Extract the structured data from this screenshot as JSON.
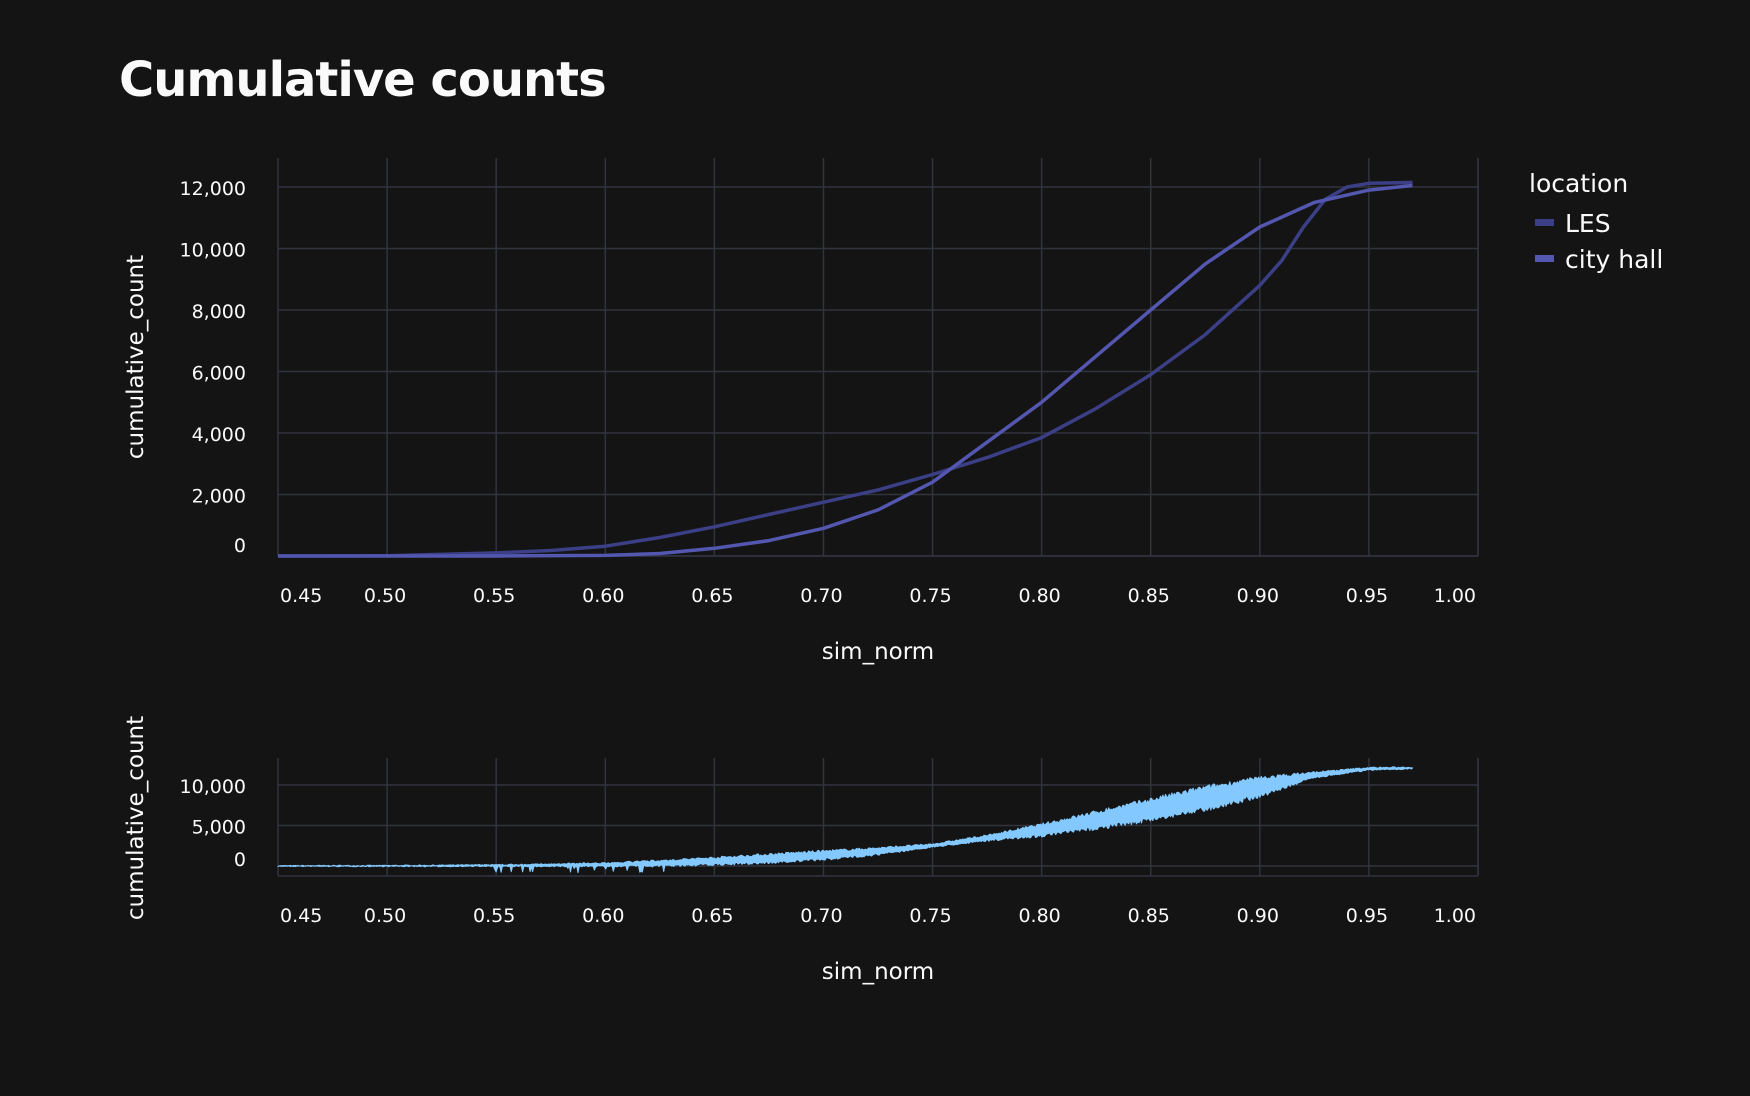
{
  "page": {
    "title": "Cumulative counts"
  },
  "colors": {
    "background": "#141414",
    "grid": "#31333f",
    "les": "#3b3f86",
    "city_hall": "#5357b0",
    "noise": "#83c9ff",
    "text": "#fafafa"
  },
  "chart_data": [
    {
      "type": "line",
      "title": "Cumulative counts",
      "xlabel": "sim_norm",
      "ylabel": "cumulative_count",
      "xlim": [
        0.45,
        1.0
      ],
      "ylim": [
        0,
        12000
      ],
      "x_ticks": [
        "0.45",
        "0.50",
        "0.55",
        "0.60",
        "0.65",
        "0.70",
        "0.75",
        "0.80",
        "0.85",
        "0.90",
        "0.95",
        "1.00"
      ],
      "y_ticks": [
        "0",
        "2,000",
        "4,000",
        "6,000",
        "8,000",
        "10,000",
        "12,000"
      ],
      "grid": true,
      "legend": {
        "title": "location",
        "placement": "right"
      },
      "series": [
        {
          "name": "LES",
          "color": "#3b3f86",
          "points": [
            [
              0.45,
              0
            ],
            [
              0.5,
              10
            ],
            [
              0.55,
              100
            ],
            [
              0.575,
              180
            ],
            [
              0.6,
              320
            ],
            [
              0.625,
              600
            ],
            [
              0.65,
              950
            ],
            [
              0.675,
              1350
            ],
            [
              0.7,
              1750
            ],
            [
              0.725,
              2150
            ],
            [
              0.75,
              2650
            ],
            [
              0.775,
              3200
            ],
            [
              0.8,
              3850
            ],
            [
              0.825,
              4800
            ],
            [
              0.85,
              5900
            ],
            [
              0.875,
              7200
            ],
            [
              0.9,
              8800
            ],
            [
              0.91,
              9600
            ],
            [
              0.92,
              10700
            ],
            [
              0.93,
              11600
            ],
            [
              0.94,
              12000
            ],
            [
              0.95,
              12120
            ],
            [
              0.97,
              12150
            ]
          ]
        },
        {
          "name": "city hall",
          "color": "#5357b0",
          "points": [
            [
              0.45,
              0
            ],
            [
              0.55,
              0
            ],
            [
              0.6,
              20
            ],
            [
              0.625,
              80
            ],
            [
              0.65,
              250
            ],
            [
              0.675,
              500
            ],
            [
              0.7,
              900
            ],
            [
              0.725,
              1500
            ],
            [
              0.75,
              2400
            ],
            [
              0.775,
              3700
            ],
            [
              0.8,
              5000
            ],
            [
              0.825,
              6500
            ],
            [
              0.85,
              8000
            ],
            [
              0.875,
              9500
            ],
            [
              0.9,
              10700
            ],
            [
              0.925,
              11500
            ],
            [
              0.95,
              11900
            ],
            [
              0.97,
              12050
            ]
          ]
        }
      ]
    },
    {
      "type": "area",
      "xlabel": "sim_norm",
      "ylabel": "cumulative_count",
      "xlim": [
        0.45,
        1.0
      ],
      "ylim": [
        0,
        12000
      ],
      "x_ticks": [
        "0.45",
        "0.50",
        "0.55",
        "0.60",
        "0.65",
        "0.70",
        "0.75",
        "0.80",
        "0.85",
        "0.90",
        "0.95",
        "1.00"
      ],
      "y_ticks": [
        "0",
        "5,000",
        "10,000"
      ],
      "grid": true,
      "series": [
        {
          "color": "#83c9ff",
          "bands": [
            [
              0.45,
              0,
              0
            ],
            [
              0.5,
              0,
              20
            ],
            [
              0.55,
              0,
              100
            ],
            [
              0.6,
              20,
              320
            ],
            [
              0.625,
              80,
              600
            ],
            [
              0.65,
              250,
              950
            ],
            [
              0.675,
              500,
              1350
            ],
            [
              0.7,
              900,
              1750
            ],
            [
              0.725,
              1500,
              2150
            ],
            [
              0.75,
              2400,
              2650
            ],
            [
              0.775,
              3200,
              3700
            ],
            [
              0.8,
              3850,
              5000
            ],
            [
              0.825,
              4800,
              6500
            ],
            [
              0.85,
              5900,
              8000
            ],
            [
              0.875,
              7200,
              9500
            ],
            [
              0.9,
              8800,
              10700
            ],
            [
              0.925,
              11000,
              11500
            ],
            [
              0.95,
              11900,
              12100
            ],
            [
              0.97,
              12050,
              12150
            ]
          ]
        }
      ]
    }
  ]
}
